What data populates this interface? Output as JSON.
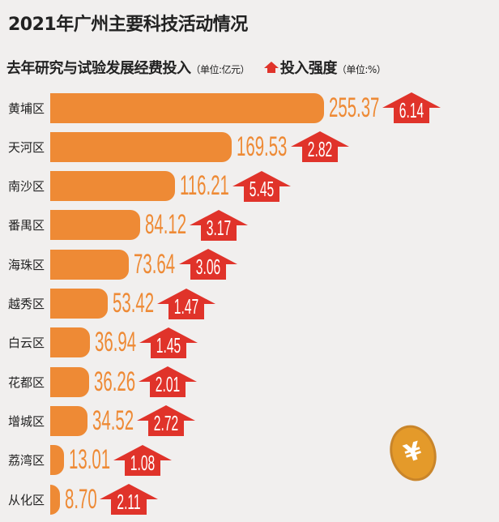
{
  "chart_data": {
    "type": "bar",
    "orientation": "horizontal",
    "title": "2021年广州主要科技活动情况",
    "subtitle": "去年研究与试验发展经费投入",
    "unit": "（单位:亿元）",
    "legend_label": "投入强度",
    "legend_unit": "（单位:%）",
    "categories": [
      "黄埔区",
      "天河区",
      "南沙区",
      "番禺区",
      "海珠区",
      "越秀区",
      "白云区",
      "花都区",
      "增城区",
      "荔湾区",
      "从化区"
    ],
    "series": [
      {
        "name": "去年研究与试验发展经费投入",
        "values": [
          "255.37",
          "169.53",
          "116.21",
          "84.12",
          "73.64",
          "53.42",
          "36.94",
          "36.26",
          "34.52",
          "13.01",
          "8.70"
        ],
        "color": "#ee8a35"
      },
      {
        "name": "投入强度",
        "values": [
          "6.14",
          "2.82",
          "5.45",
          "3.17",
          "3.06",
          "1.47",
          "1.45",
          "2.01",
          "2.72",
          "1.08",
          "2.11"
        ],
        "color": "#e0332a"
      }
    ]
  },
  "coin_symbol": "¥"
}
